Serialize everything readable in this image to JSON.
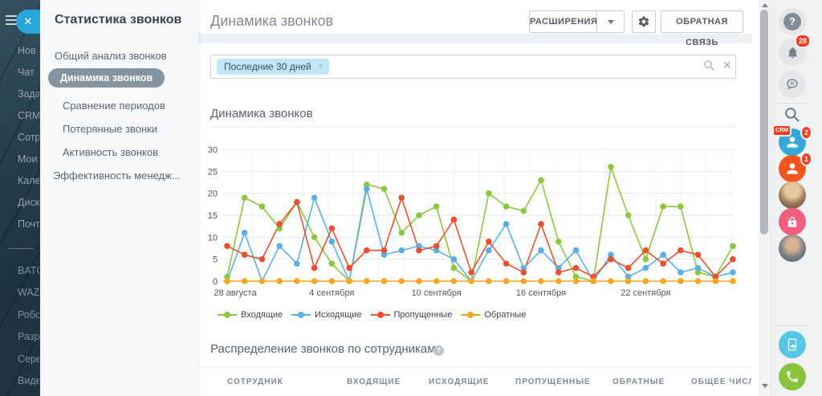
{
  "app": {
    "left_rail": {
      "items_top": [
        "Нов",
        "Чат",
        "Зада",
        "CRM",
        "Сотр",
        "Мои",
        "Кале",
        "Диск",
        "Почт"
      ],
      "items_bottom": [
        "BATC",
        "WAZ",
        "Робо",
        "Разр",
        "Сере",
        "Виде"
      ],
      "close_glyph": "✕"
    },
    "menu": {
      "title": "Статистика звонков",
      "items": [
        {
          "label": "Общий анализ звонков"
        },
        {
          "label": "Динамика звонков"
        },
        {
          "label": "Сравнение периодов"
        },
        {
          "label": "Потерянные звонки"
        },
        {
          "label": "Активность звонков"
        },
        {
          "label": "Эффективность менедж..."
        }
      ]
    },
    "header": {
      "title": "Динамика звонков",
      "extensions_button": "РАСШИРЕНИЯ",
      "feedback_button": "ОБРАТНАЯ СВЯЗЬ"
    },
    "filter": {
      "tag": "Последние 30 дней",
      "tag_remove_glyph": "×",
      "clear_glyph": "✕"
    },
    "sections": {
      "chart_title": "Динамика звонков",
      "table_title": "Распределение звонков по сотрудникам",
      "table_help_glyph": "?",
      "table_columns": [
        "СОТРУДНИК",
        "ВХОДЯЩИЕ",
        "ИСХОДЯЩИЕ",
        "ПРОПУЩЕННЫЕ",
        "ОБРАТНЫЕ",
        "ОБЩЕЕ ЧИСЛО ЗВОНКОВ"
      ]
    },
    "right_rail": {
      "help_glyph": "?",
      "bell_badge": "28",
      "crm_tag": "CRM",
      "crm_badge": "2",
      "calls_badge": "1"
    }
  },
  "chart_data": {
    "type": "line",
    "title": "Динамика звонков",
    "ylim": [
      0,
      30
    ],
    "ytick_step": 5,
    "n_points": 30,
    "grid": true,
    "legend_position": "bottom",
    "x_tick_labels": [
      {
        "index": 0,
        "label": "28 августа"
      },
      {
        "index": 6,
        "label": "4 сентября"
      },
      {
        "index": 12,
        "label": "10 сентября"
      },
      {
        "index": 18,
        "label": "16 сентября"
      },
      {
        "index": 24,
        "label": "22 сентября"
      }
    ],
    "series": [
      {
        "name": "Входящие",
        "color": "#8dc63f",
        "values": [
          1,
          19,
          17,
          12,
          18,
          10,
          4,
          0,
          22,
          21,
          11,
          15,
          17,
          3,
          0,
          20,
          17,
          16,
          23,
          9,
          1,
          0,
          26,
          15,
          5,
          17,
          17,
          2,
          1,
          8
        ]
      },
      {
        "name": "Исходящие",
        "color": "#59b1e3",
        "values": [
          0,
          11,
          0,
          8,
          4,
          19,
          9,
          0,
          21,
          6,
          7,
          8,
          7,
          5,
          0,
          7,
          13,
          3,
          7,
          3,
          7,
          0,
          6,
          1,
          3,
          6,
          2,
          3,
          1,
          2
        ]
      },
      {
        "name": "Пропущенные",
        "color": "#e8502f",
        "values": [
          8,
          6,
          5,
          13,
          18,
          3,
          12,
          3,
          7,
          7,
          19,
          7,
          8,
          14,
          2,
          9,
          4,
          2,
          13,
          2,
          3,
          1,
          5,
          3,
          7,
          4,
          7,
          6,
          1,
          5
        ]
      },
      {
        "name": "Обратные",
        "color": "#f5a623",
        "values": [
          0,
          0,
          0,
          0,
          0,
          0,
          0,
          0,
          0,
          0,
          0,
          0,
          0,
          0,
          0,
          0,
          0,
          0,
          0,
          0,
          0,
          0,
          0,
          0,
          0,
          0,
          0,
          0,
          0,
          0
        ]
      }
    ]
  }
}
